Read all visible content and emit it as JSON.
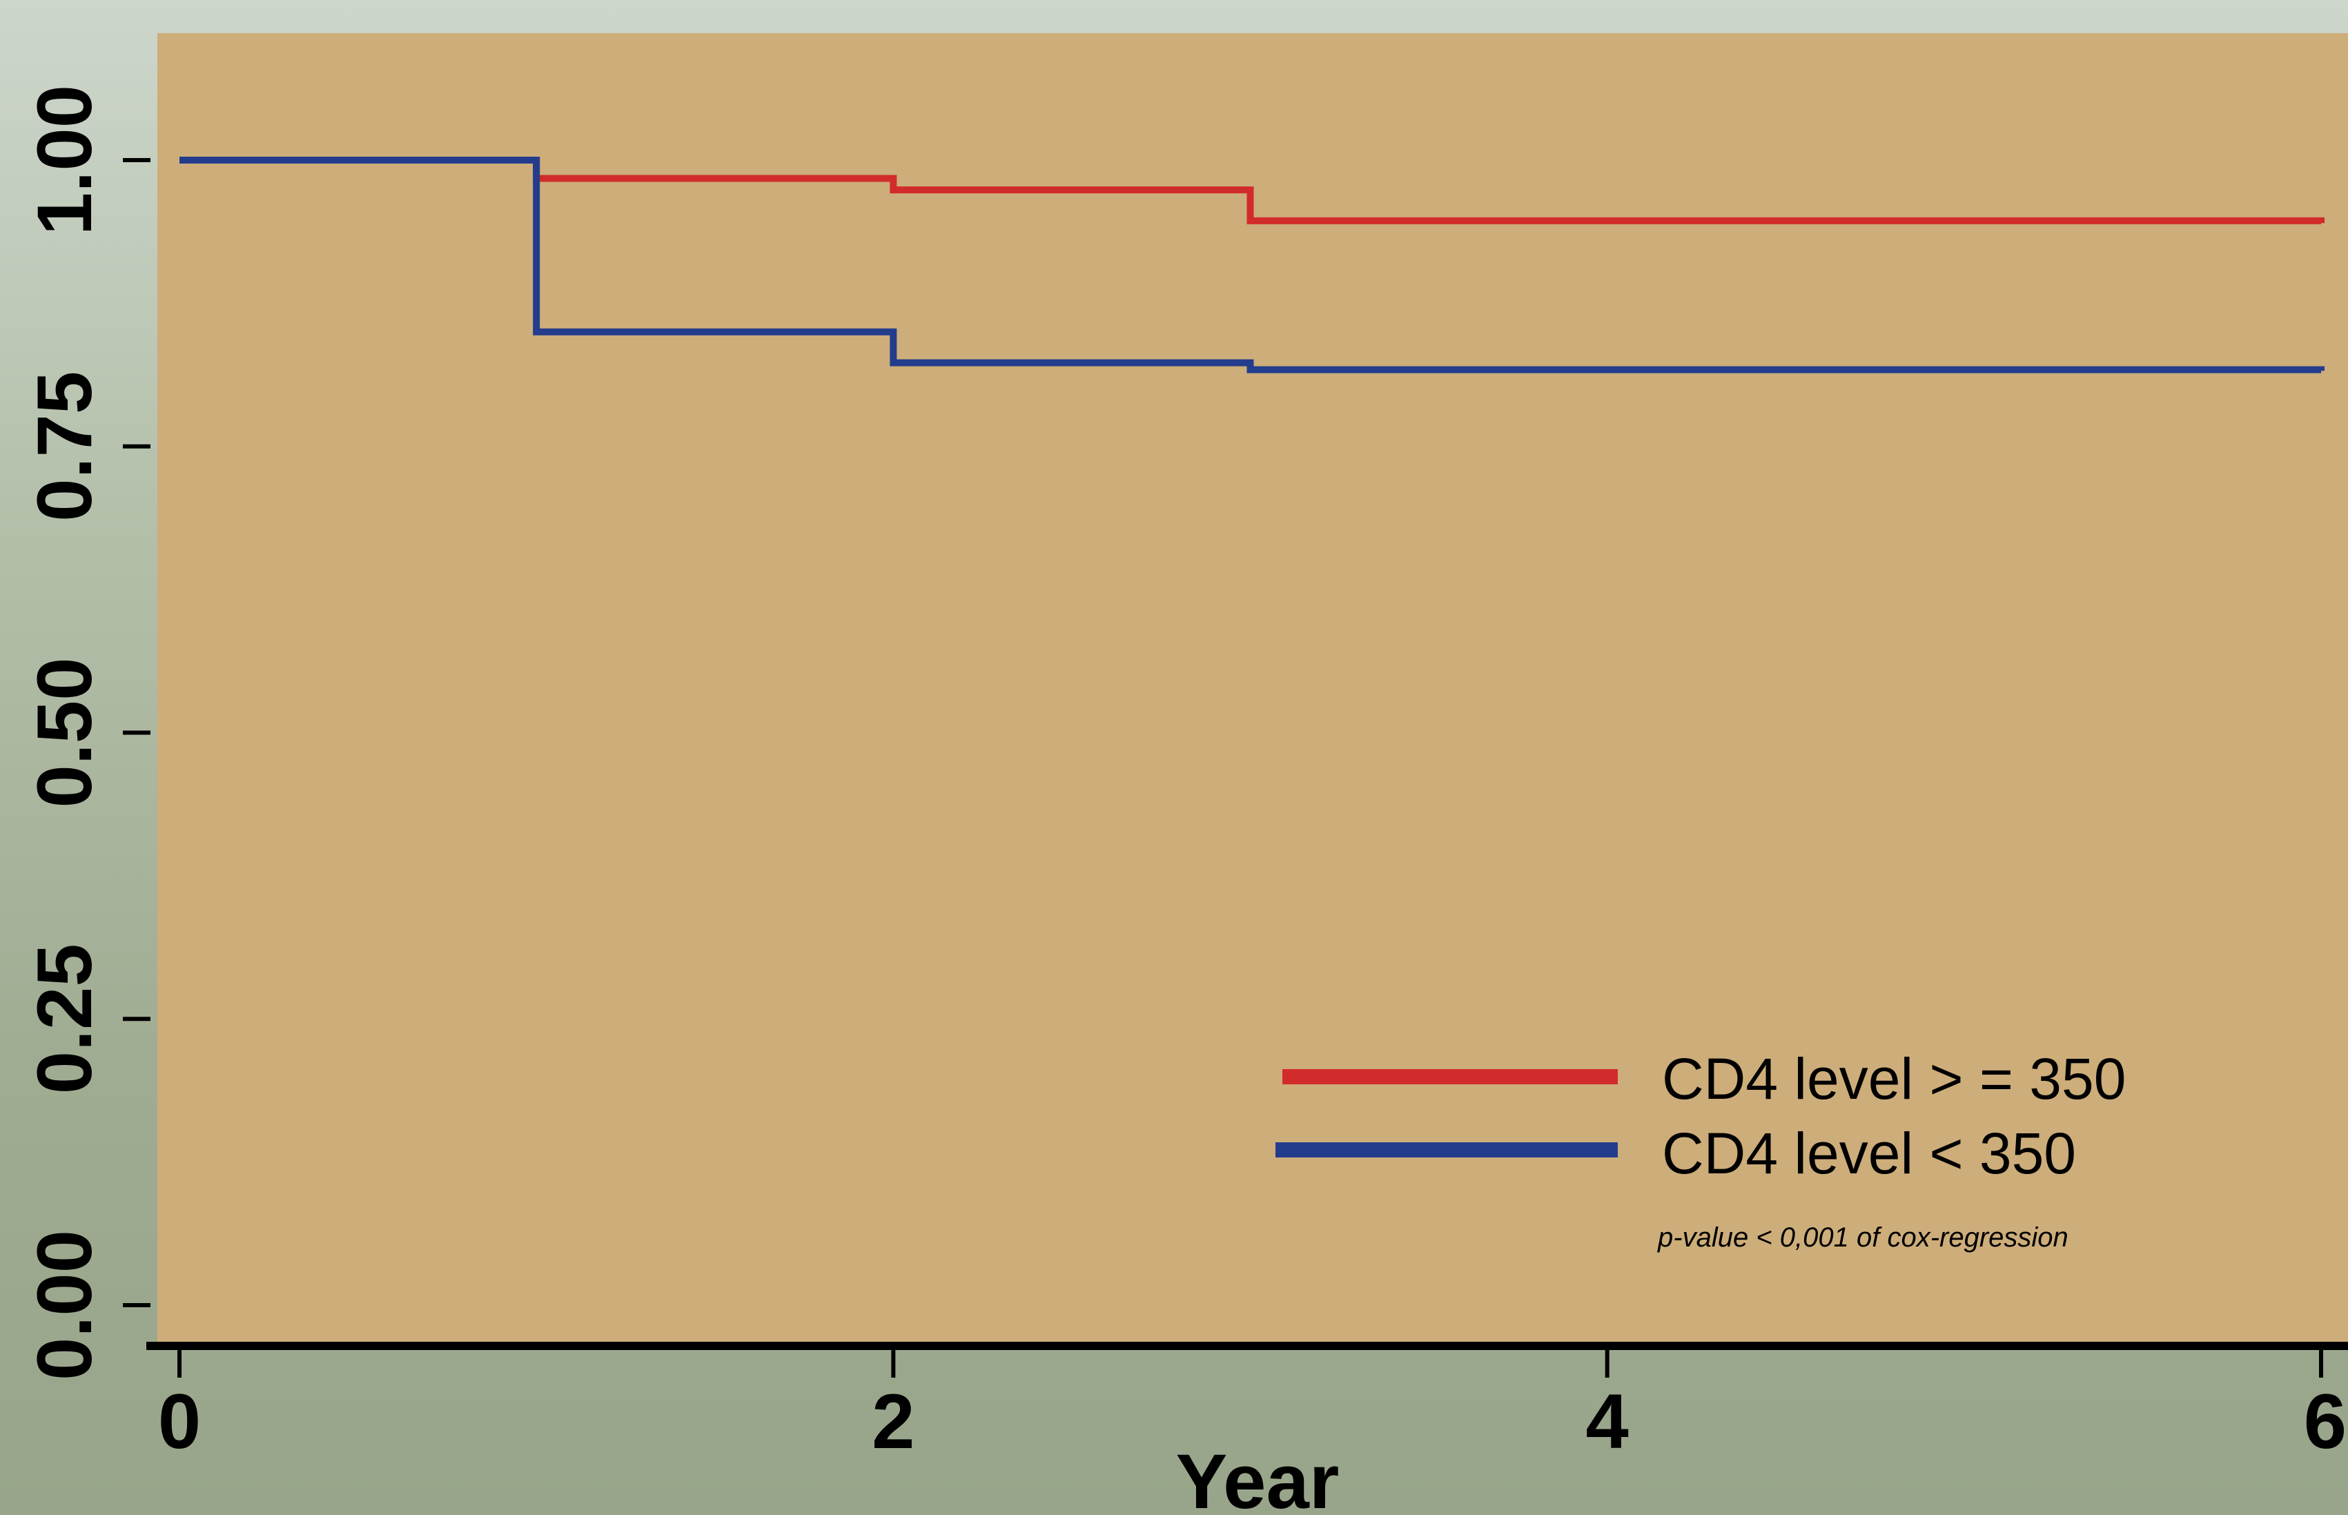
{
  "chart_data": {
    "type": "line",
    "step": true,
    "title": "",
    "xlabel": "Year",
    "ylabel": "",
    "xlim": [
      0,
      6
    ],
    "ylim": [
      0,
      1.05
    ],
    "x_ticks": [
      0,
      2,
      4,
      6
    ],
    "x_tick_labels": [
      "0",
      "2",
      "4",
      "6"
    ],
    "y_ticks": [
      0,
      0.25,
      0.5,
      0.75,
      1.0
    ],
    "y_tick_labels": [
      "0.00",
      "0.25",
      "0.50",
      "0.75",
      "1.00"
    ],
    "grid": false,
    "legend_position": "bottom-right",
    "background_color": "#cdad7a",
    "series": [
      {
        "name": "CD4 level > = 350",
        "color": "#d22b2b",
        "x": [
          0,
          1,
          2,
          3,
          6
        ],
        "y": [
          1.0,
          0.984,
          0.974,
          0.947,
          0.945
        ]
      },
      {
        "name": "CD4 level < 350",
        "color": "#233d8c",
        "x": [
          0,
          1,
          2,
          3,
          6
        ],
        "y": [
          1.0,
          0.85,
          0.823,
          0.817,
          0.816
        ]
      }
    ],
    "annotation": "p-value < 0,001 of cox-regression"
  }
}
